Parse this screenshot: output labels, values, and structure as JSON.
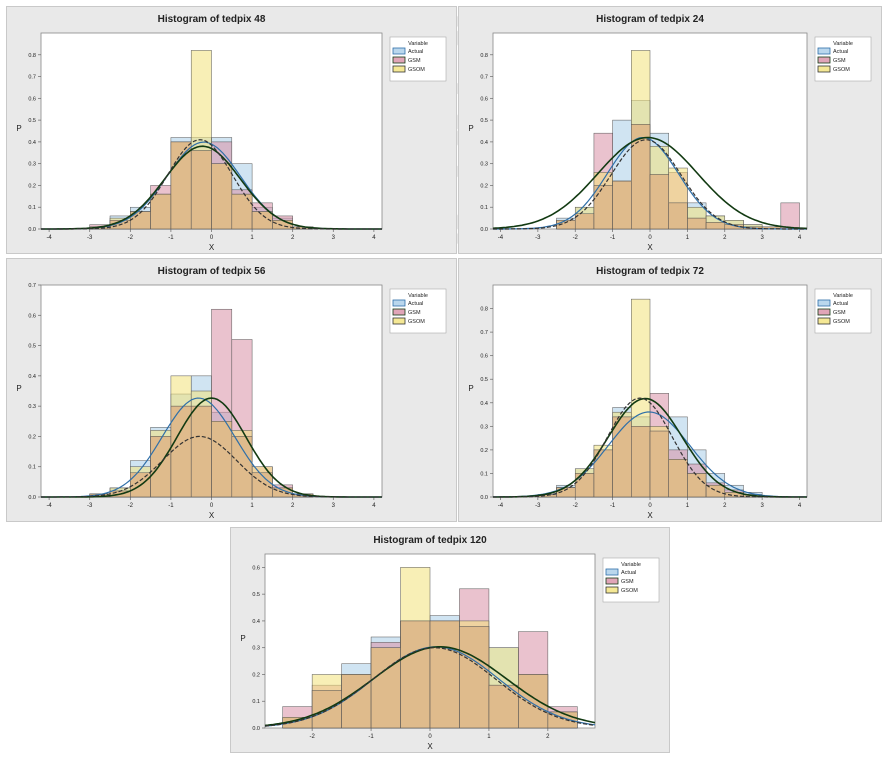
{
  "colors": {
    "actual_fill": "#a9cde8",
    "gsm_fill": "#d98fa6",
    "gsom_fill": "#f2e27a",
    "overlap_fill": "#dcb487",
    "actual_line": "#2f6fa8",
    "gsm_line": "#123a12",
    "gsom_line": "#333333",
    "panel_bg": "#e9e9e9",
    "plot_bg": "#ffffff"
  },
  "chart_data": [
    {
      "type": "bar",
      "title": "Histogram of tedpix 48",
      "xlabel": "X",
      "ylabel": "P",
      "xlim": [
        -4.2,
        4.2
      ],
      "ylim": [
        0,
        0.9
      ],
      "xticks": [
        "-4",
        "-3",
        "-2",
        "-1",
        "0",
        "1",
        "2",
        "3",
        "4"
      ],
      "yticks": [
        "0.0",
        "0.1",
        "0.2",
        "0.3",
        "0.4",
        "0.5",
        "0.6",
        "0.7",
        "0.8"
      ],
      "bin_edges": [
        -3,
        -2.5,
        -2,
        -1.5,
        -1,
        -0.5,
        0,
        0.5,
        1,
        1.5,
        2,
        2.5
      ],
      "legend": {
        "title": "Variable",
        "entries": [
          "Actual",
          "GSM",
          "GSOM"
        ]
      },
      "series": [
        {
          "name": "Actual",
          "values": [
            0.01,
            0.06,
            0.1,
            0.16,
            0.42,
            0.42,
            0.42,
            0.3,
            0.1,
            0.05,
            0.01
          ]
        },
        {
          "name": "GSM",
          "values": [
            0.02,
            0.04,
            0.08,
            0.2,
            0.4,
            0.36,
            0.4,
            0.18,
            0.12,
            0.06,
            0.01
          ]
        },
        {
          "name": "GSOM",
          "values": [
            0.01,
            0.05,
            0.08,
            0.16,
            0.4,
            0.82,
            0.3,
            0.16,
            0.08,
            0.04,
            0.01
          ]
        }
      ]
    },
    {
      "type": "bar",
      "title": "Histogram of tedpix 24",
      "xlabel": "X",
      "ylabel": "P",
      "xlim": [
        -4.2,
        4.2
      ],
      "ylim": [
        0,
        0.9
      ],
      "xticks": [
        "-4",
        "-3",
        "-2",
        "-1",
        "0",
        "1",
        "2",
        "3",
        "4"
      ],
      "yticks": [
        "0.0",
        "0.1",
        "0.2",
        "0.3",
        "0.4",
        "0.5",
        "0.6",
        "0.7",
        "0.8"
      ],
      "bin_edges": [
        -2.5,
        -2,
        -1.5,
        -1,
        -0.5,
        0,
        0.5,
        1,
        1.5,
        2,
        2.5,
        3,
        3.5,
        4
      ],
      "legend": {
        "title": "Variable",
        "entries": [
          "Actual",
          "GSM",
          "GSOM"
        ]
      },
      "series": [
        {
          "name": "Actual",
          "values": [
            0.05,
            0.1,
            0.2,
            0.5,
            0.59,
            0.44,
            0.12,
            0.12,
            0.06,
            0.04,
            0.02,
            0.01,
            0.0
          ]
        },
        {
          "name": "GSM",
          "values": [
            0.04,
            0.07,
            0.44,
            0.22,
            0.48,
            0.25,
            0.26,
            0.05,
            0.03,
            0.02,
            0.01,
            0.01,
            0.12
          ]
        },
        {
          "name": "GSOM",
          "values": [
            0.04,
            0.1,
            0.26,
            0.22,
            0.82,
            0.38,
            0.28,
            0.1,
            0.06,
            0.04,
            0.02,
            0.01,
            0.0
          ]
        }
      ]
    },
    {
      "type": "bar",
      "title": "Histogram of tedpix 56",
      "xlabel": "X",
      "ylabel": "P",
      "xlim": [
        -4.2,
        4.2
      ],
      "ylim": [
        0,
        0.7
      ],
      "xticks": [
        "-4",
        "-3",
        "-2",
        "-1",
        "0",
        "1",
        "2",
        "3",
        "4"
      ],
      "yticks": [
        "0.0",
        "0.1",
        "0.2",
        "0.3",
        "0.4",
        "0.5",
        "0.6",
        "0.7"
      ],
      "bin_edges": [
        -3,
        -2.5,
        -2,
        -1.5,
        -1,
        -0.5,
        0,
        0.5,
        1,
        1.5,
        2,
        2.5
      ],
      "legend": {
        "title": "Variable",
        "entries": [
          "Actual",
          "GSM",
          "GSOM"
        ]
      },
      "series": [
        {
          "name": "Actual",
          "values": [
            0.01,
            0.03,
            0.12,
            0.23,
            0.34,
            0.4,
            0.28,
            0.2,
            0.08,
            0.03,
            0.01
          ]
        },
        {
          "name": "GSM",
          "values": [
            0.01,
            0.02,
            0.08,
            0.2,
            0.3,
            0.3,
            0.62,
            0.52,
            0.1,
            0.04,
            0.01
          ]
        },
        {
          "name": "GSOM",
          "values": [
            0.01,
            0.03,
            0.1,
            0.22,
            0.4,
            0.35,
            0.25,
            0.22,
            0.1,
            0.03,
            0.01
          ]
        }
      ]
    },
    {
      "type": "bar",
      "title": "Histogram of tedpix 72",
      "xlabel": "X",
      "ylabel": "P",
      "xlim": [
        -4.2,
        4.2
      ],
      "ylim": [
        0,
        0.9
      ],
      "xticks": [
        "-4",
        "-3",
        "-2",
        "-1",
        "0",
        "1",
        "2",
        "3",
        "4"
      ],
      "yticks": [
        "0.0",
        "0.1",
        "0.2",
        "0.3",
        "0.4",
        "0.5",
        "0.6",
        "0.7",
        "0.8"
      ],
      "bin_edges": [
        -3,
        -2.5,
        -2,
        -1.5,
        -1,
        -0.5,
        0,
        0.5,
        1,
        1.5,
        2,
        2.5,
        3
      ],
      "legend": {
        "title": "Variable",
        "entries": [
          "Actual",
          "GSM",
          "GSOM"
        ]
      },
      "series": [
        {
          "name": "Actual",
          "values": [
            0.01,
            0.05,
            0.12,
            0.2,
            0.38,
            0.34,
            0.28,
            0.34,
            0.2,
            0.1,
            0.05,
            0.02
          ]
        },
        {
          "name": "GSM",
          "values": [
            0.01,
            0.04,
            0.1,
            0.2,
            0.34,
            0.3,
            0.44,
            0.2,
            0.14,
            0.06,
            0.03,
            0.01
          ]
        },
        {
          "name": "GSOM",
          "values": [
            0.01,
            0.04,
            0.12,
            0.22,
            0.36,
            0.84,
            0.3,
            0.16,
            0.1,
            0.05,
            0.02,
            0.01
          ]
        }
      ]
    },
    {
      "type": "bar",
      "title": "Histogram of tedpix 120",
      "xlabel": "X",
      "ylabel": "P",
      "xlim": [
        -2.8,
        2.8
      ],
      "ylim": [
        0,
        0.65
      ],
      "xticks": [
        "-2",
        "-1",
        "0",
        "1",
        "2"
      ],
      "yticks": [
        "0.0",
        "0.1",
        "0.2",
        "0.3",
        "0.4",
        "0.5",
        "0.6"
      ],
      "bin_edges": [
        -2.5,
        -2,
        -1.5,
        -1,
        -0.5,
        0,
        0.5,
        1,
        1.5,
        2,
        2.5
      ],
      "legend": {
        "title": "Variable",
        "entries": [
          "Actual",
          "GSM",
          "GSOM"
        ]
      },
      "series": [
        {
          "name": "Actual",
          "values": [
            0.04,
            0.14,
            0.24,
            0.34,
            0.4,
            0.42,
            0.38,
            0.3,
            0.2,
            0.06
          ]
        },
        {
          "name": "GSM",
          "values": [
            0.08,
            0.16,
            0.2,
            0.32,
            0.4,
            0.4,
            0.52,
            0.16,
            0.36,
            0.08
          ]
        },
        {
          "name": "GSOM",
          "values": [
            0.04,
            0.2,
            0.2,
            0.3,
            0.6,
            0.4,
            0.4,
            0.3,
            0.2,
            0.06
          ]
        }
      ]
    }
  ]
}
